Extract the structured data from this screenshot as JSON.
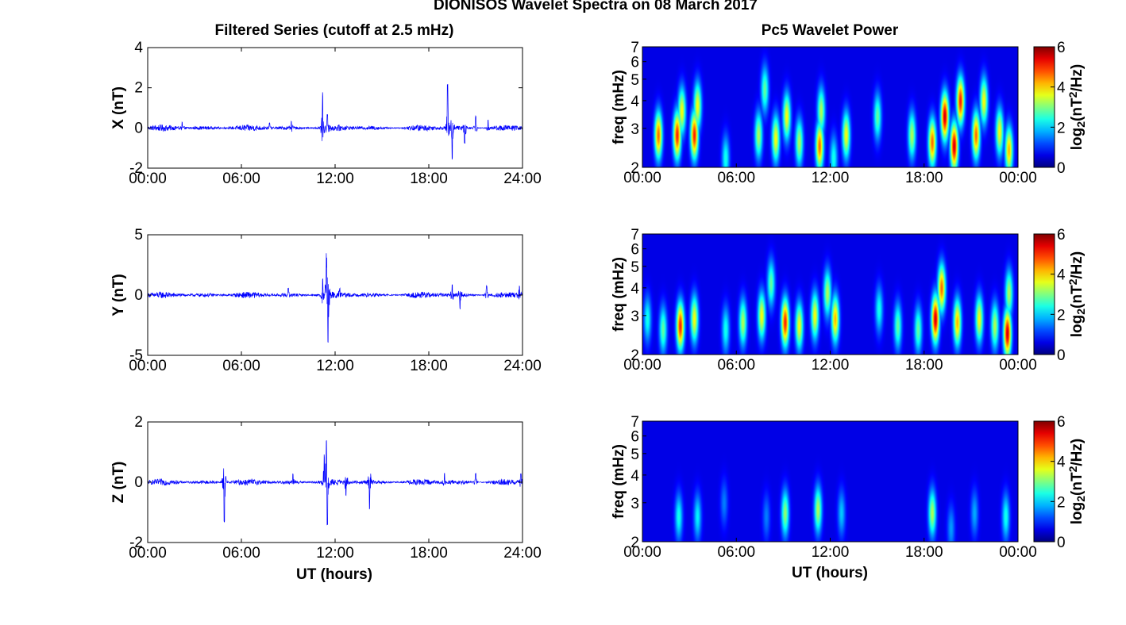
{
  "figure": {
    "title": "DIONISOS Wavelet Spectra on 08 March 2017",
    "left_column_title": "Filtered Series (cutoff at 2.5 mHz)",
    "right_column_title": "Pc5 Wavelet Power",
    "xlabel": "UT (hours)"
  },
  "colors": {
    "series_line": "#0000ff",
    "spectrogram_background": "#00008f",
    "colormap": "jet"
  },
  "chart_data": [
    {
      "type": "line",
      "name": "X",
      "ylabel": "X (nT)",
      "xlim": [
        0,
        24
      ],
      "ylim": [
        -2,
        4
      ],
      "x_ticks": [
        "00:00",
        "06:00",
        "12:00",
        "18:00",
        "24:00"
      ],
      "y_ticks": [
        "-2",
        "0",
        "2",
        "4"
      ],
      "baseline_amplitude": 0.15,
      "bursts": [
        {
          "t": 2.2,
          "amp": 0.3
        },
        {
          "t": 7.8,
          "amp": 0.25
        },
        {
          "t": 9.2,
          "amp": 0.35
        },
        {
          "t": 11.2,
          "amp": 1.8
        },
        {
          "t": 11.5,
          "amp": 0.7
        },
        {
          "t": 19.2,
          "amp": 2.4
        },
        {
          "t": 19.5,
          "amp": -1.6
        },
        {
          "t": 20.3,
          "amp": -0.8
        },
        {
          "t": 21.0,
          "amp": 0.6
        },
        {
          "t": 21.8,
          "amp": 0.4
        }
      ]
    },
    {
      "type": "line",
      "name": "Y",
      "ylabel": "Y (nT)",
      "xlim": [
        0,
        24
      ],
      "ylim": [
        -5,
        5
      ],
      "x_ticks": [
        "00:00",
        "06:00",
        "12:00",
        "18:00",
        "24:00"
      ],
      "y_ticks": [
        "-5",
        "0",
        "5"
      ],
      "baseline_amplitude": 0.25,
      "bursts": [
        {
          "t": 9.0,
          "amp": 0.6
        },
        {
          "t": 11.2,
          "amp": 1.5
        },
        {
          "t": 11.45,
          "amp": 3.0
        },
        {
          "t": 11.55,
          "amp": -4.2
        },
        {
          "t": 12.3,
          "amp": 0.6
        },
        {
          "t": 19.5,
          "amp": 0.9
        },
        {
          "t": 20.0,
          "amp": -1.2
        },
        {
          "t": 21.7,
          "amp": 0.8
        },
        {
          "t": 23.8,
          "amp": 0.8
        }
      ]
    },
    {
      "type": "line",
      "name": "Z",
      "ylabel": "Z (nT)",
      "xlim": [
        0,
        24
      ],
      "ylim": [
        -2,
        2
      ],
      "x_ticks": [
        "00:00",
        "06:00",
        "12:00",
        "18:00",
        "24:00"
      ],
      "y_ticks": [
        "-2",
        "0",
        "2"
      ],
      "baseline_amplitude": 0.1,
      "bursts": [
        {
          "t": 4.9,
          "amp": -1.35
        },
        {
          "t": 9.3,
          "amp": 0.3
        },
        {
          "t": 11.3,
          "amp": 0.95
        },
        {
          "t": 11.45,
          "amp": 1.1
        },
        {
          "t": 11.5,
          "amp": -1.45
        },
        {
          "t": 12.7,
          "amp": -0.5
        },
        {
          "t": 14.2,
          "amp": -0.9
        },
        {
          "t": 19.0,
          "amp": 0.3
        },
        {
          "t": 21.0,
          "amp": 0.3
        },
        {
          "t": 23.9,
          "amp": 0.3
        }
      ]
    },
    {
      "type": "heatmap",
      "name": "X",
      "ylabel": "freq (mHz)",
      "xlim": [
        0,
        24
      ],
      "ylim": [
        2,
        7
      ],
      "y_scale": "log",
      "x_ticks": [
        "00:00",
        "06:00",
        "12:00",
        "18:00",
        "00:00"
      ],
      "y_ticks": [
        "2",
        "3",
        "4",
        "5",
        "6",
        "7"
      ],
      "colorbar": {
        "label": "log2(nT2/Hz)",
        "range": [
          0,
          6
        ],
        "ticks": [
          "0",
          "2",
          "4",
          "6"
        ]
      },
      "blobs": [
        {
          "t": 1.0,
          "f": 2.8,
          "p": 4.5
        },
        {
          "t": 2.2,
          "f": 2.8,
          "p": 5.0
        },
        {
          "t": 2.5,
          "f": 3.6,
          "p": 3.5
        },
        {
          "t": 3.3,
          "f": 2.8,
          "p": 5.0
        },
        {
          "t": 3.5,
          "f": 3.8,
          "p": 3.5
        },
        {
          "t": 5.3,
          "f": 2.2,
          "p": 2.0
        },
        {
          "t": 7.4,
          "f": 2.8,
          "p": 3.0
        },
        {
          "t": 7.8,
          "f": 4.5,
          "p": 2.5
        },
        {
          "t": 8.5,
          "f": 2.7,
          "p": 3.5
        },
        {
          "t": 9.2,
          "f": 3.4,
          "p": 3.5
        },
        {
          "t": 10.0,
          "f": 2.6,
          "p": 3.0
        },
        {
          "t": 11.3,
          "f": 2.5,
          "p": 4.5
        },
        {
          "t": 11.4,
          "f": 3.6,
          "p": 3.0
        },
        {
          "t": 12.2,
          "f": 2.2,
          "p": 2.0
        },
        {
          "t": 13.0,
          "f": 2.8,
          "p": 3.5
        },
        {
          "t": 15.0,
          "f": 3.4,
          "p": 2.5
        },
        {
          "t": 17.2,
          "f": 2.8,
          "p": 3.0
        },
        {
          "t": 18.5,
          "f": 2.6,
          "p": 4.5
        },
        {
          "t": 19.3,
          "f": 3.4,
          "p": 5.5
        },
        {
          "t": 19.9,
          "f": 2.5,
          "p": 5.5
        },
        {
          "t": 20.3,
          "f": 4.0,
          "p": 5.0
        },
        {
          "t": 21.3,
          "f": 2.8,
          "p": 4.5
        },
        {
          "t": 21.8,
          "f": 4.0,
          "p": 3.5
        },
        {
          "t": 22.8,
          "f": 2.9,
          "p": 3.5
        },
        {
          "t": 23.4,
          "f": 2.4,
          "p": 4.0
        }
      ]
    },
    {
      "type": "heatmap",
      "name": "Y",
      "ylabel": "freq (mHz)",
      "xlim": [
        0,
        24
      ],
      "ylim": [
        2,
        7
      ],
      "y_scale": "log",
      "x_ticks": [
        "00:00",
        "06:00",
        "12:00",
        "18:00",
        "00:00"
      ],
      "y_ticks": [
        "2",
        "3",
        "4",
        "5",
        "6",
        "7"
      ],
      "colorbar": {
        "label": "log2(nT2/Hz)",
        "range": [
          0,
          6
        ],
        "ticks": [
          "0",
          "2",
          "4",
          "6"
        ]
      },
      "blobs": [
        {
          "t": 0.3,
          "f": 2.9,
          "p": 2.0
        },
        {
          "t": 1.3,
          "f": 2.6,
          "p": 2.5
        },
        {
          "t": 2.4,
          "f": 2.7,
          "p": 5.0
        },
        {
          "t": 3.3,
          "f": 2.9,
          "p": 3.5
        },
        {
          "t": 5.3,
          "f": 2.6,
          "p": 2.0
        },
        {
          "t": 6.4,
          "f": 2.8,
          "p": 3.0
        },
        {
          "t": 7.6,
          "f": 3.0,
          "p": 3.5
        },
        {
          "t": 8.2,
          "f": 4.2,
          "p": 2.5
        },
        {
          "t": 9.1,
          "f": 2.8,
          "p": 5.0
        },
        {
          "t": 10.0,
          "f": 2.7,
          "p": 3.5
        },
        {
          "t": 11.0,
          "f": 3.0,
          "p": 3.5
        },
        {
          "t": 11.8,
          "f": 3.8,
          "p": 3.0
        },
        {
          "t": 12.3,
          "f": 2.9,
          "p": 4.0
        },
        {
          "t": 15.1,
          "f": 3.2,
          "p": 2.0
        },
        {
          "t": 16.3,
          "f": 2.7,
          "p": 2.5
        },
        {
          "t": 17.6,
          "f": 2.6,
          "p": 2.5
        },
        {
          "t": 18.7,
          "f": 2.9,
          "p": 5.5
        },
        {
          "t": 19.1,
          "f": 4.0,
          "p": 4.5
        },
        {
          "t": 20.1,
          "f": 2.8,
          "p": 4.0
        },
        {
          "t": 21.5,
          "f": 2.9,
          "p": 3.5
        },
        {
          "t": 22.5,
          "f": 2.7,
          "p": 3.0
        },
        {
          "t": 23.3,
          "f": 2.5,
          "p": 5.5
        },
        {
          "t": 23.4,
          "f": 3.8,
          "p": 3.0
        }
      ]
    },
    {
      "type": "heatmap",
      "name": "Z",
      "ylabel": "freq (mHz)",
      "xlim": [
        0,
        24
      ],
      "ylim": [
        2,
        7
      ],
      "y_scale": "log",
      "x_ticks": [
        "00:00",
        "06:00",
        "12:00",
        "18:00",
        "00:00"
      ],
      "y_ticks": [
        "2",
        "3",
        "4",
        "5",
        "6",
        "7"
      ],
      "colorbar": {
        "label": "log2(nT2/Hz)",
        "range": [
          0,
          6
        ],
        "ticks": [
          "0",
          "2",
          "4",
          "6"
        ]
      },
      "blobs": [
        {
          "t": 2.3,
          "f": 2.6,
          "p": 2.0
        },
        {
          "t": 3.5,
          "f": 2.6,
          "p": 1.8
        },
        {
          "t": 5.2,
          "f": 3.0,
          "p": 1.0
        },
        {
          "t": 7.9,
          "f": 2.6,
          "p": 1.0
        },
        {
          "t": 9.1,
          "f": 2.7,
          "p": 2.8
        },
        {
          "t": 11.2,
          "f": 2.8,
          "p": 3.0
        },
        {
          "t": 12.7,
          "f": 2.7,
          "p": 1.5
        },
        {
          "t": 18.5,
          "f": 2.7,
          "p": 3.0
        },
        {
          "t": 19.7,
          "f": 2.3,
          "p": 1.2
        },
        {
          "t": 21.2,
          "f": 2.7,
          "p": 1.3
        },
        {
          "t": 23.2,
          "f": 2.6,
          "p": 2.0
        }
      ]
    }
  ]
}
